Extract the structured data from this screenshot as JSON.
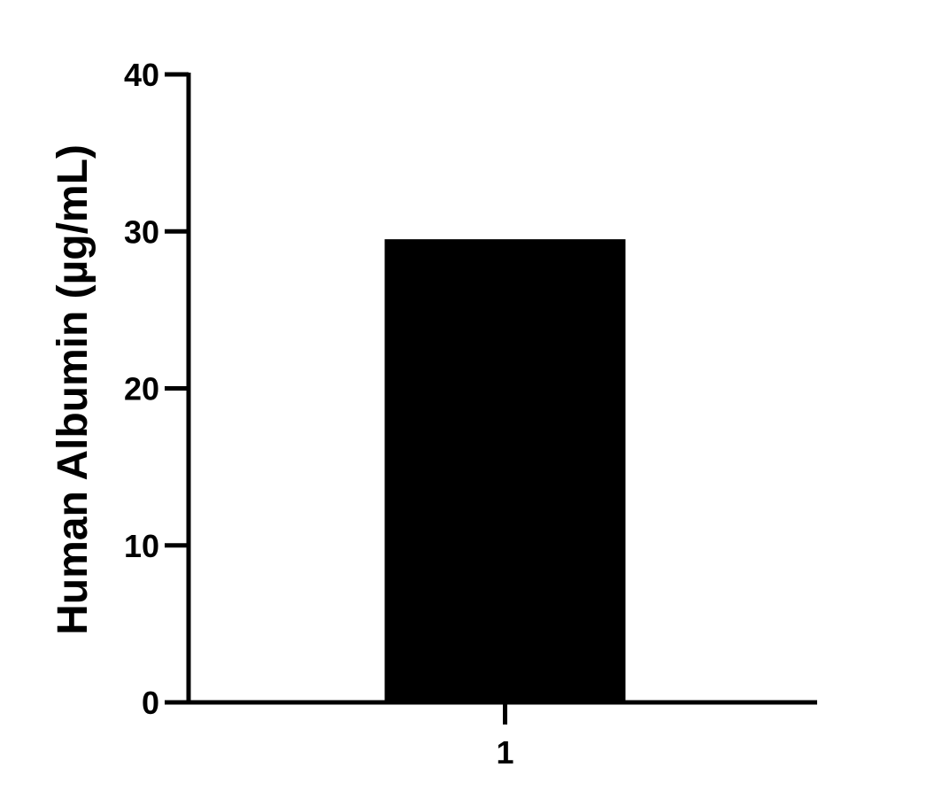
{
  "chart_data": {
    "type": "bar",
    "title": "",
    "xlabel": "",
    "ylabel": "Human Albumin (µg/mL)",
    "categories": [
      "1"
    ],
    "values": [
      29.5
    ],
    "ylim": [
      0,
      40
    ],
    "yticks": [
      "0",
      "10",
      "20",
      "30",
      "40"
    ],
    "grid": false,
    "bar_color": "#000000"
  }
}
